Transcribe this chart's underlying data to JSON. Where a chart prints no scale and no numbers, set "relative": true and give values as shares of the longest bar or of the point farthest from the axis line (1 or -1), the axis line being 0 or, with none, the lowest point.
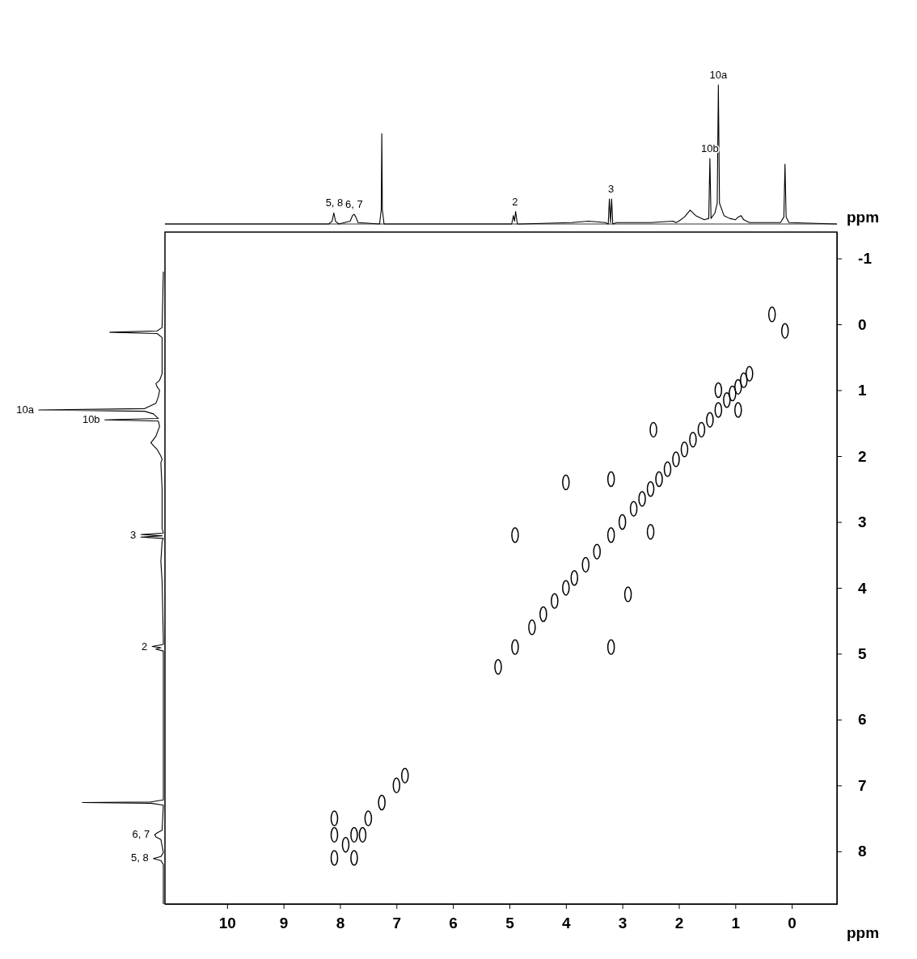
{
  "chart_data": [
    {
      "type": "line",
      "relative": true,
      "color": "#000000",
      "xlim": [
        11.1,
        -0.8
      ],
      "x": [
        11.1,
        8.2,
        8.14,
        8.11,
        8.08,
        8.02,
        7.82,
        7.78,
        7.75,
        7.72,
        7.68,
        7.3,
        7.27,
        7.26,
        7.25,
        7.22,
        4.96,
        4.93,
        4.91,
        4.89,
        4.86,
        4.8,
        3.9,
        3.6,
        3.3,
        3.25,
        3.23,
        3.21,
        3.19,
        3.17,
        3.1,
        2.5,
        2.1,
        2.05,
        2.0,
        1.9,
        1.8,
        1.7,
        1.55,
        1.47,
        1.45,
        1.43,
        1.36,
        1.32,
        1.3,
        1.28,
        1.2,
        1.1,
        1.0,
        0.95,
        0.9,
        0.85,
        0.75,
        0.2,
        0.14,
        0.12,
        0.1,
        0.05,
        -0.8
      ],
      "values": [
        0,
        0,
        0.02,
        0.08,
        0.02,
        0,
        0.02,
        0.06,
        0.07,
        0.05,
        0.01,
        0,
        0.1,
        0.65,
        0.1,
        0,
        0,
        0.06,
        0.02,
        0.09,
        0,
        0,
        0.01,
        0.02,
        0.01,
        0,
        0.18,
        0.01,
        0.18,
        0,
        0.01,
        0.01,
        0.02,
        0.01,
        0.02,
        0.05,
        0.1,
        0.06,
        0.03,
        0.04,
        0.47,
        0.04,
        0.08,
        0.15,
        1,
        0.15,
        0.06,
        0.04,
        0.03,
        0.05,
        0.06,
        0.03,
        0.01,
        0.01,
        0.05,
        0.43,
        0.05,
        0.01,
        0
      ],
      "annotations": [
        {
          "text": "5, 8",
          "x": 8.1,
          "y": 0.08
        },
        {
          "text": "6, 7",
          "x": 7.75,
          "y": 0.07
        },
        {
          "text": "2",
          "x": 4.9,
          "y": 0.09
        },
        {
          "text": "3",
          "x": 3.2,
          "y": 0.18
        },
        {
          "text": "10b",
          "x": 1.45,
          "y": 0.47
        },
        {
          "text": "10a",
          "x": 1.3,
          "y": 1
        }
      ]
    },
    {
      "type": "other",
      "annotations": [
        "10a",
        "10b",
        "3",
        "2",
        "6, 7",
        "5, 8"
      ]
    },
    {
      "type": "scatter",
      "color": "#000000",
      "xlim": [
        11.1,
        -0.8
      ],
      "ylim": [
        8.8,
        -1.4
      ],
      "xticks": [
        10,
        9,
        8,
        7,
        6,
        5,
        4,
        3,
        2,
        1,
        0
      ],
      "yticks": [
        -1,
        0,
        1,
        2,
        3,
        4,
        5,
        6,
        7,
        8
      ],
      "xlabel": "ppm",
      "ylabel": "ppm",
      "x": [
        0.12,
        0.35,
        0.75,
        0.85,
        0.95,
        1.05,
        1.15,
        1.3,
        1.45,
        1.6,
        1.75,
        1.9,
        2.05,
        2.2,
        2.35,
        2.5,
        2.65,
        2.8,
        3.0,
        3.2,
        3.45,
        3.65,
        3.85,
        4.0,
        4.2,
        4.4,
        4.6,
        4.9,
        5.2,
        0.95,
        1.3,
        2.45,
        3.2,
        4.0,
        4.9,
        3.2,
        2.9,
        2.5,
        6.85,
        7.0,
        7.26,
        7.5,
        7.6,
        7.75,
        7.9,
        8.1,
        8.1,
        7.75,
        8.1
      ],
      "values": [
        0.1,
        -0.15,
        0.75,
        0.85,
        0.95,
        1.05,
        1.15,
        1.3,
        1.45,
        1.6,
        1.75,
        1.9,
        2.05,
        2.2,
        2.35,
        2.5,
        2.65,
        2.8,
        3.0,
        3.2,
        3.45,
        3.65,
        3.85,
        4.0,
        4.2,
        4.4,
        4.6,
        4.9,
        5.2,
        1.3,
        1.0,
        1.6,
        2.35,
        2.4,
        3.2,
        4.9,
        4.1,
        3.15,
        6.85,
        7.0,
        7.26,
        7.5,
        7.75,
        7.75,
        7.9,
        8.1,
        7.75,
        8.1,
        7.5
      ]
    }
  ]
}
